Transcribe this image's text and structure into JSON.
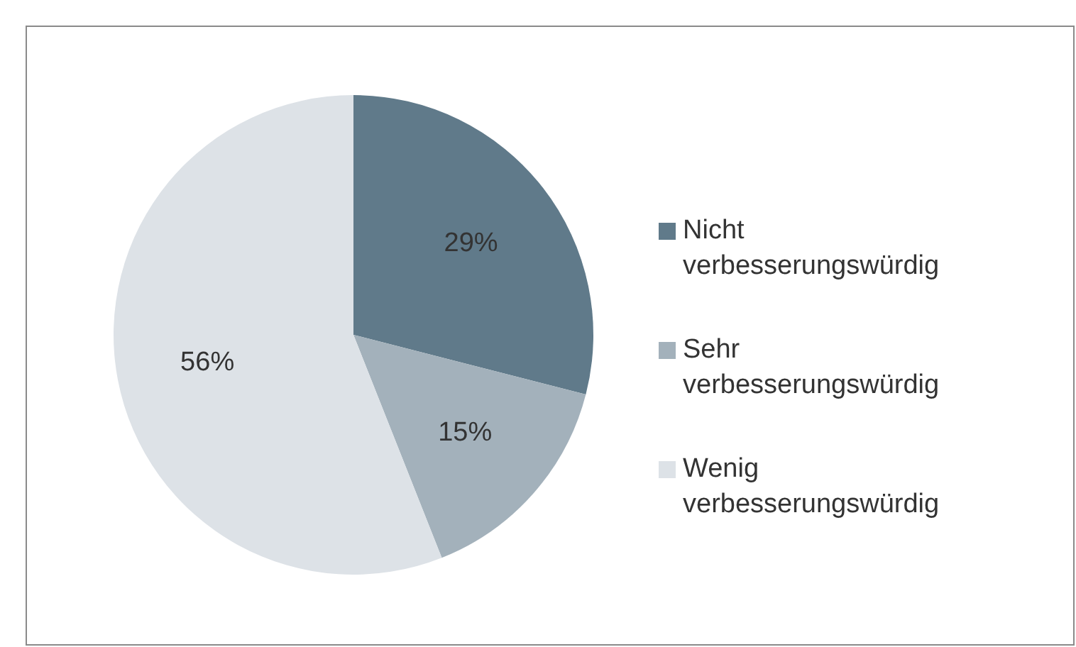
{
  "chart_data": {
    "type": "pie",
    "categories": [
      "Nicht verbesserungswürdig",
      "Sehr verbesserungswürdig",
      "Wenig verbesserungswürdig"
    ],
    "values": [
      29,
      15,
      56
    ],
    "colors": [
      "#607a8a",
      "#a3b1bb",
      "#dde2e7"
    ],
    "value_labels": [
      "29%",
      "15%",
      "56%"
    ],
    "legend": "right"
  }
}
